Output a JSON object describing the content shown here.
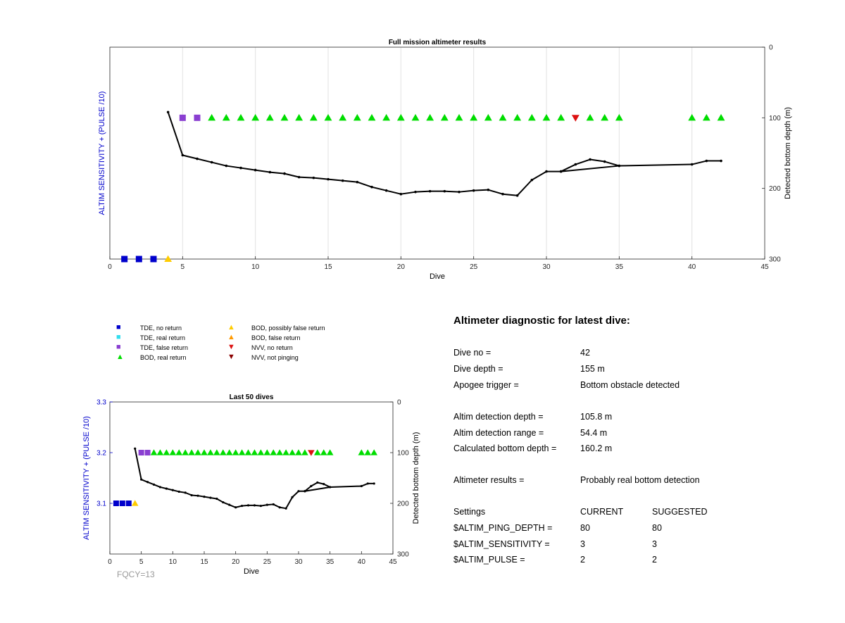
{
  "colors": {
    "axis_label_blue": "#0000cc",
    "green": "#00dd00",
    "purple": "#8a3fd1",
    "blue": "#0000cc",
    "yellow": "#ffcc00",
    "red": "#dd1111",
    "line": "#000000"
  },
  "footer": {
    "fqcy": "FQCY=13"
  },
  "legend": {
    "items": [
      {
        "label": "TDE, no return",
        "marker": "square",
        "color": "#0000cc"
      },
      {
        "label": "TDE, real return",
        "marker": "square",
        "color": "#33ddee"
      },
      {
        "label": "TDE, false return",
        "marker": "square",
        "color": "#8a3fd1"
      },
      {
        "label": "BOD, real return",
        "marker": "triangle-up",
        "color": "#00dd00"
      },
      {
        "label": "BOD, possibly false return",
        "marker": "triangle-up",
        "color": "#ffcc00"
      },
      {
        "label": "BOD, false return",
        "marker": "triangle-up",
        "color": "#ff9900"
      },
      {
        "label": "NVV, no return",
        "marker": "triangle-down",
        "color": "#dd1111"
      },
      {
        "label": "NVV, not pinging",
        "marker": "triangle-down",
        "color": "#8b0000"
      }
    ]
  },
  "diagnostic": {
    "title": "Altimeter diagnostic for latest dive:",
    "rows": [
      {
        "label": "Dive no =",
        "value": "42"
      },
      {
        "label": "Dive depth =",
        "value": "155 m"
      },
      {
        "label": "Apogee trigger =",
        "value": "Bottom obstacle detected"
      },
      {
        "label": "Altim detection depth =",
        "value": "105.8 m"
      },
      {
        "label": "Altim detection range =",
        "value": "54.4 m"
      },
      {
        "label": "Calculated bottom depth =",
        "value": "160.2 m"
      },
      {
        "label": "Altimeter results =",
        "value": "Probably real bottom detection"
      }
    ],
    "settings": {
      "header": {
        "label": "Settings",
        "current": "CURRENT",
        "suggested": "SUGGESTED"
      },
      "rows": [
        {
          "label": "$ALTIM_PING_DEPTH =",
          "current": "80",
          "suggested": "80"
        },
        {
          "label": "$ALTIM_SENSITIVITY =",
          "current": "3",
          "suggested": "3"
        },
        {
          "label": "$ALTIM_PULSE =",
          "current": "2",
          "suggested": "2"
        }
      ]
    }
  },
  "chart_data": [
    {
      "type": "scatter",
      "title": "Full mission altimeter results",
      "xlabel": "Dive",
      "ylabel": "ALTIM SENSITIVITY + (PULSE /10)",
      "y2label": "Detected bottom depth (m)",
      "xlim": [
        0,
        45
      ],
      "xticks": [
        0,
        5,
        10,
        15,
        20,
        25,
        30,
        35,
        40,
        45
      ],
      "y2lim": [
        0,
        300
      ],
      "y2ticks": [
        0,
        100,
        200,
        300
      ],
      "y2_reversed": true,
      "grid_x": true,
      "markers_on_depth_axis": true,
      "markers": [
        {
          "series": "TDE, no return",
          "shape": "square",
          "color": "#0000cc",
          "points": [
            [
              1,
              300
            ],
            [
              2,
              300
            ],
            [
              3,
              300
            ]
          ]
        },
        {
          "series": "BOD, possibly false return",
          "shape": "triangle-up",
          "color": "#ffcc00",
          "points": [
            [
              4,
              300
            ]
          ]
        },
        {
          "series": "TDE, false return",
          "shape": "square",
          "color": "#8a3fd1",
          "points": [
            [
              5,
              100
            ],
            [
              6,
              100
            ]
          ]
        },
        {
          "series": "BOD, real return",
          "shape": "triangle-up",
          "color": "#00dd00",
          "points": [
            [
              7,
              100
            ],
            [
              8,
              100
            ],
            [
              9,
              100
            ],
            [
              10,
              100
            ],
            [
              11,
              100
            ],
            [
              12,
              100
            ],
            [
              13,
              100
            ],
            [
              14,
              100
            ],
            [
              15,
              100
            ],
            [
              16,
              100
            ],
            [
              17,
              100
            ],
            [
              18,
              100
            ],
            [
              19,
              100
            ],
            [
              20,
              100
            ],
            [
              21,
              100
            ],
            [
              22,
              100
            ],
            [
              23,
              100
            ],
            [
              24,
              100
            ],
            [
              25,
              100
            ],
            [
              26,
              100
            ],
            [
              27,
              100
            ],
            [
              28,
              100
            ],
            [
              29,
              100
            ],
            [
              30,
              100
            ],
            [
              31,
              100
            ],
            [
              33,
              100
            ],
            [
              34,
              100
            ],
            [
              35,
              100
            ],
            [
              40,
              100
            ],
            [
              41,
              100
            ],
            [
              42,
              100
            ]
          ]
        },
        {
          "series": "NVV, no return",
          "shape": "triangle-down",
          "color": "#dd1111",
          "points": [
            [
              32,
              100
            ]
          ]
        }
      ],
      "depth_line": [
        [
          4,
          92
        ],
        [
          5,
          153
        ],
        [
          6,
          158
        ],
        [
          7,
          163
        ],
        [
          8,
          168
        ],
        [
          9,
          171
        ],
        [
          10,
          174
        ],
        [
          11,
          177
        ],
        [
          12,
          179
        ],
        [
          13,
          184
        ],
        [
          14,
          185
        ],
        [
          15,
          187
        ],
        [
          16,
          189
        ],
        [
          17,
          191
        ],
        [
          18,
          198
        ],
        [
          19,
          203
        ],
        [
          20,
          208
        ],
        [
          21,
          205
        ],
        [
          22,
          204
        ],
        [
          23,
          204
        ],
        [
          24,
          205
        ],
        [
          25,
          203
        ],
        [
          26,
          202
        ],
        [
          27,
          208
        ],
        [
          28,
          210
        ],
        [
          29,
          188
        ],
        [
          30,
          176
        ],
        [
          31,
          176
        ],
        [
          32,
          166
        ],
        [
          33,
          159
        ],
        [
          34,
          162
        ],
        [
          35,
          168
        ],
        [
          31,
          176
        ],
        [
          35,
          168
        ],
        [
          40,
          166
        ],
        [
          41,
          161
        ],
        [
          42,
          161
        ]
      ]
    },
    {
      "type": "scatter",
      "title": "Last 50 dives",
      "xlabel": "Dive",
      "ylabel": "ALTIM SENSITIVITY + (PULSE /10)",
      "y2label": "Detected bottom depth (m)",
      "xlim": [
        0,
        45
      ],
      "xticks": [
        0,
        5,
        10,
        15,
        20,
        25,
        30,
        35,
        40,
        45
      ],
      "ylim": [
        3.0,
        3.3
      ],
      "yticks": [
        3.1,
        3.2,
        3.3
      ],
      "y2lim": [
        0,
        300
      ],
      "y2ticks": [
        0,
        100,
        200,
        300
      ],
      "y2_reversed": true,
      "grid": false,
      "markers": [
        {
          "series": "TDE, no return",
          "shape": "square",
          "color": "#0000cc",
          "points": [
            [
              1,
              3.1
            ],
            [
              2,
              3.1
            ],
            [
              3,
              3.1
            ]
          ]
        },
        {
          "series": "BOD, possibly false return",
          "shape": "triangle-up",
          "color": "#ffcc00",
          "points": [
            [
              4,
              3.1
            ]
          ]
        },
        {
          "series": "TDE, false return",
          "shape": "square",
          "color": "#8a3fd1",
          "points": [
            [
              5,
              3.2
            ],
            [
              6,
              3.2
            ]
          ]
        },
        {
          "series": "BOD, real return",
          "shape": "triangle-up",
          "color": "#00dd00",
          "points": [
            [
              7,
              3.2
            ],
            [
              8,
              3.2
            ],
            [
              9,
              3.2
            ],
            [
              10,
              3.2
            ],
            [
              11,
              3.2
            ],
            [
              12,
              3.2
            ],
            [
              13,
              3.2
            ],
            [
              14,
              3.2
            ],
            [
              15,
              3.2
            ],
            [
              16,
              3.2
            ],
            [
              17,
              3.2
            ],
            [
              18,
              3.2
            ],
            [
              19,
              3.2
            ],
            [
              20,
              3.2
            ],
            [
              21,
              3.2
            ],
            [
              22,
              3.2
            ],
            [
              23,
              3.2
            ],
            [
              24,
              3.2
            ],
            [
              25,
              3.2
            ],
            [
              26,
              3.2
            ],
            [
              27,
              3.2
            ],
            [
              28,
              3.2
            ],
            [
              29,
              3.2
            ],
            [
              30,
              3.2
            ],
            [
              31,
              3.2
            ],
            [
              33,
              3.2
            ],
            [
              34,
              3.2
            ],
            [
              35,
              3.2
            ],
            [
              40,
              3.2
            ],
            [
              41,
              3.2
            ],
            [
              42,
              3.2
            ]
          ]
        },
        {
          "series": "NVV, no return",
          "shape": "triangle-down",
          "color": "#dd1111",
          "points": [
            [
              32,
              3.2
            ]
          ]
        }
      ],
      "depth_line": [
        [
          4,
          92
        ],
        [
          5,
          153
        ],
        [
          6,
          158
        ],
        [
          7,
          163
        ],
        [
          8,
          168
        ],
        [
          9,
          171
        ],
        [
          10,
          174
        ],
        [
          11,
          177
        ],
        [
          12,
          179
        ],
        [
          13,
          184
        ],
        [
          14,
          185
        ],
        [
          15,
          187
        ],
        [
          16,
          189
        ],
        [
          17,
          191
        ],
        [
          18,
          198
        ],
        [
          19,
          203
        ],
        [
          20,
          208
        ],
        [
          21,
          205
        ],
        [
          22,
          204
        ],
        [
          23,
          204
        ],
        [
          24,
          205
        ],
        [
          25,
          203
        ],
        [
          26,
          202
        ],
        [
          27,
          208
        ],
        [
          28,
          210
        ],
        [
          29,
          188
        ],
        [
          30,
          176
        ],
        [
          31,
          176
        ],
        [
          32,
          166
        ],
        [
          33,
          159
        ],
        [
          34,
          162
        ],
        [
          35,
          168
        ],
        [
          31,
          176
        ],
        [
          35,
          168
        ],
        [
          40,
          166
        ],
        [
          41,
          161
        ],
        [
          42,
          161
        ]
      ]
    }
  ]
}
